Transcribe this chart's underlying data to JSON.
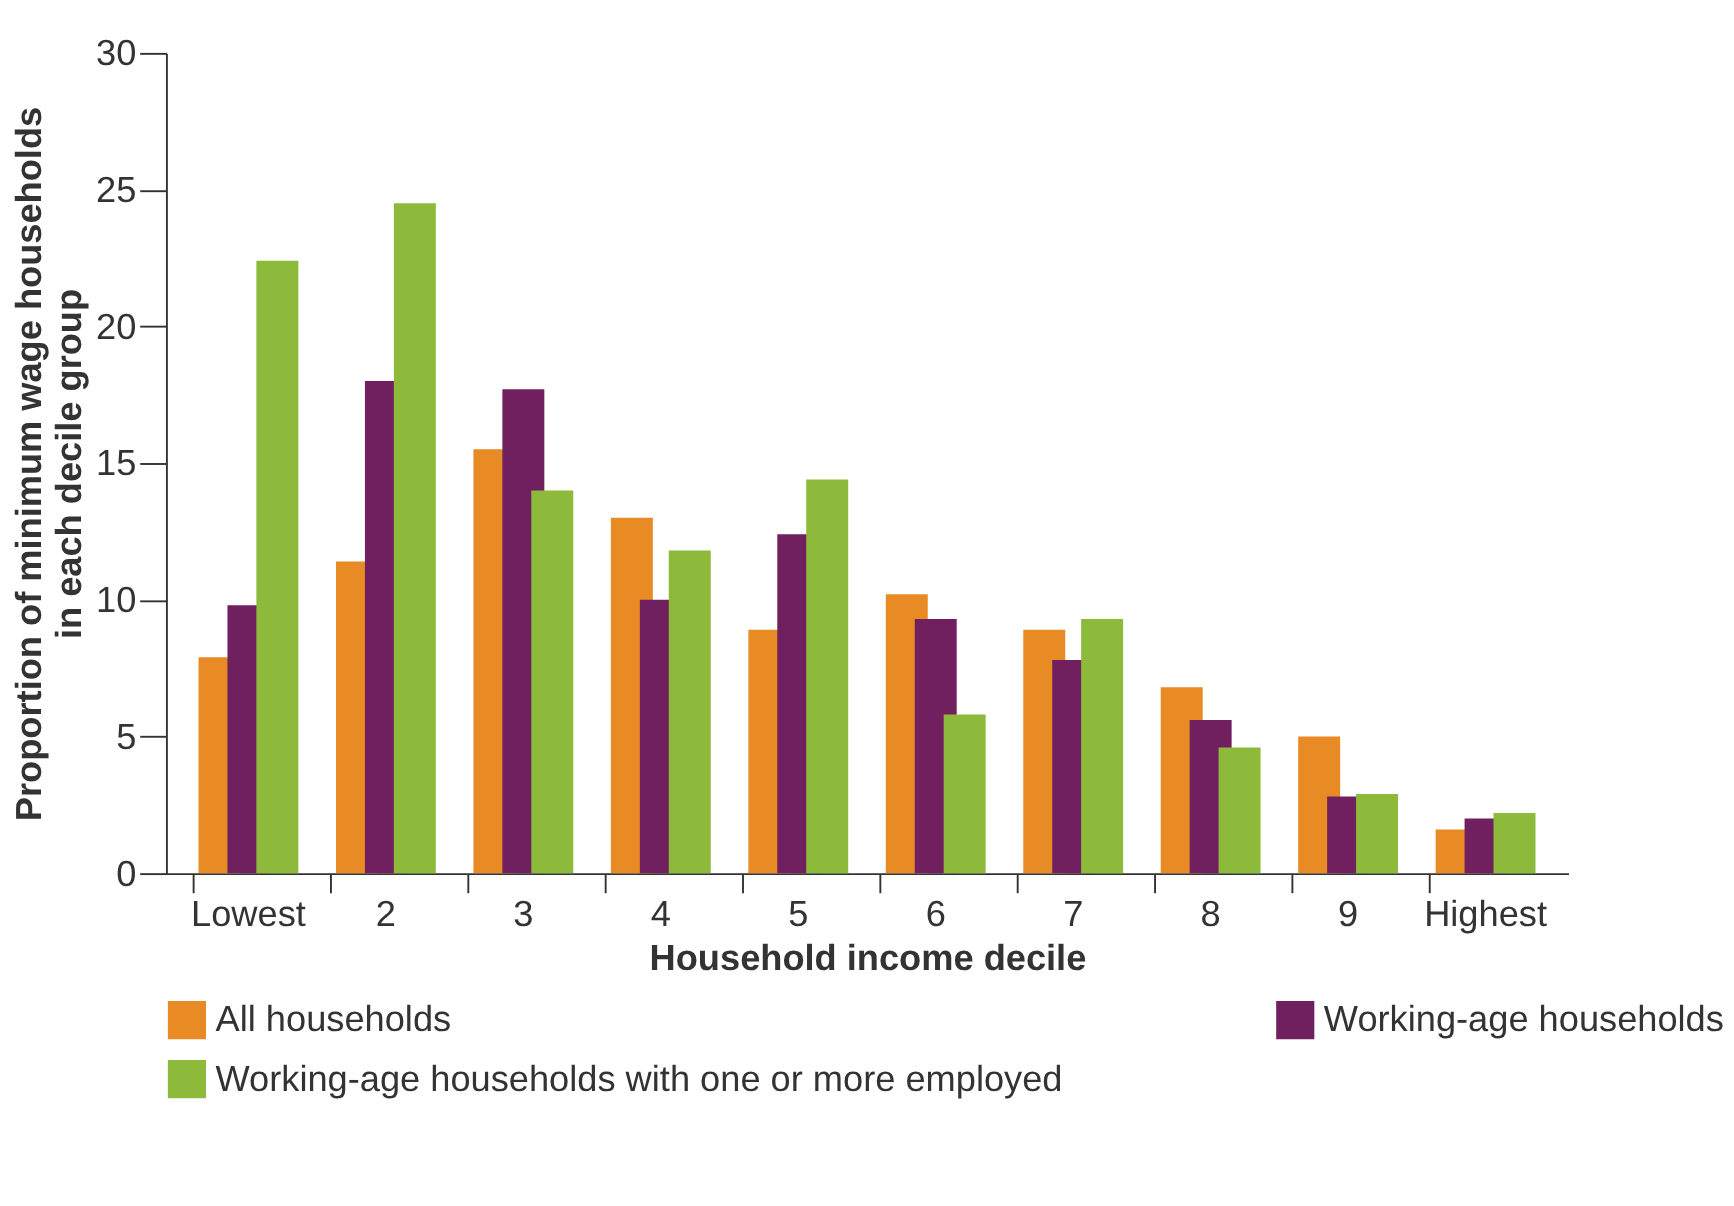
{
  "chart_data": {
    "type": "bar",
    "xlabel": "Household income decile",
    "ylabel": "Proportion of minimum wage households\nin each decile group",
    "categories": [
      "Lowest",
      "2",
      "3",
      "4",
      "5",
      "6",
      "7",
      "8",
      "9",
      "Highest"
    ],
    "series": [
      {
        "name": "All households",
        "color": "#e98b25",
        "values": [
          7.9,
          11.4,
          15.5,
          13.0,
          8.9,
          10.2,
          8.9,
          6.8,
          5.0,
          1.6
        ]
      },
      {
        "name": "Working-age households",
        "color": "#70205e",
        "values": [
          9.8,
          18.0,
          17.7,
          10.0,
          12.4,
          9.3,
          7.8,
          5.6,
          2.8,
          2.0
        ]
      },
      {
        "name": "Working-age households with one or more employed",
        "color": "#8dba3a",
        "values": [
          22.4,
          24.5,
          14.0,
          11.8,
          14.4,
          5.8,
          9.3,
          4.6,
          2.9,
          2.2
        ]
      }
    ],
    "ylim": [
      0,
      30
    ],
    "yticks": [
      0,
      5,
      10,
      15,
      20,
      25,
      30
    ],
    "grid": false,
    "legend": "bottom"
  }
}
